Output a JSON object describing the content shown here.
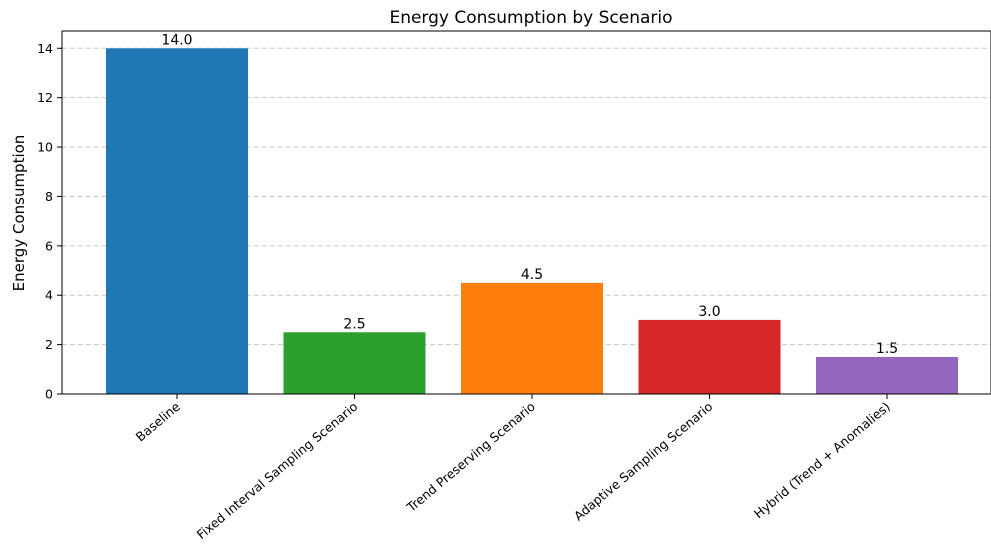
{
  "chart_data": {
    "type": "bar",
    "title": "Energy Consumption by Scenario",
    "xlabel": "",
    "ylabel": "Energy Consumption",
    "categories": [
      "Baseline",
      "Fixed Interval Sampling Scenario",
      "Trend Preserving Scenario",
      "Adaptive Sampling Scenario",
      "Hybrid (Trend + Anomalies)"
    ],
    "values": [
      14.0,
      2.5,
      4.5,
      3.0,
      1.5
    ],
    "data_labels": [
      "14.0",
      "2.5",
      "4.5",
      "3.0",
      "1.5"
    ],
    "colors": [
      "#1f77b4",
      "#2ca02c",
      "#ff7f0e",
      "#d62728",
      "#9467bd"
    ],
    "ylim": [
      0,
      14.7
    ],
    "yticks": [
      0,
      2,
      4,
      6,
      8,
      10,
      12,
      14
    ],
    "grid": "y-dashed",
    "legend": "none"
  }
}
